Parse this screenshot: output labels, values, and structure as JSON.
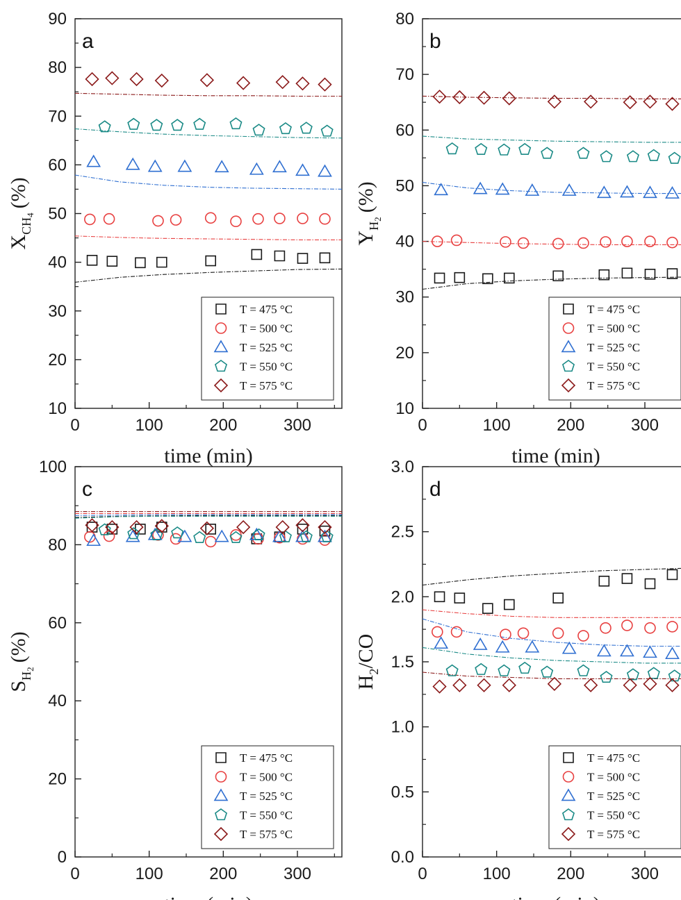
{
  "colors": {
    "T475": "#1a1a1a",
    "T500": "#e84040",
    "T525": "#2f6fd1",
    "T550": "#1a8a86",
    "T575": "#8b1a1a"
  },
  "chart_data": [
    {
      "type": "scatter",
      "panel": "a",
      "xlabel": "time (min)",
      "ylabel": {
        "base": "X",
        "sub": "CH",
        "sub2": "4",
        "unit": "(%)"
      },
      "xlim": [
        0,
        360
      ],
      "ylim": [
        10,
        90
      ],
      "xticks": [
        "0",
        "100",
        "200",
        "300"
      ],
      "yticks": [
        "10",
        "20",
        "30",
        "40",
        "50",
        "60",
        "70",
        "80",
        "90"
      ],
      "legend": {
        "position": "bottom-right"
      },
      "series": [
        {
          "name": "T = 475 °C",
          "marker": "square",
          "color": "T475",
          "x": [
            23,
            50,
            88,
            117,
            183,
            245,
            276,
            307,
            337
          ],
          "y": [
            40.4,
            40.2,
            39.9,
            40.0,
            40.3,
            41.6,
            41.3,
            40.8,
            40.9
          ],
          "fit_x": [
            0,
            60,
            120,
            180,
            240,
            300,
            360
          ],
          "fit_y": [
            35.9,
            36.9,
            37.5,
            37.9,
            38.2,
            38.5,
            38.6
          ]
        },
        {
          "name": "T = 500 °C",
          "marker": "circle",
          "color": "T500",
          "x": [
            20,
            46,
            112,
            136,
            183,
            217,
            247,
            276,
            307,
            337
          ],
          "y": [
            48.8,
            48.9,
            48.5,
            48.7,
            49.1,
            48.4,
            48.9,
            49.0,
            49.0,
            48.9
          ],
          "fit_x": [
            0,
            60,
            120,
            180,
            240,
            300,
            360
          ],
          "fit_y": [
            45.4,
            45.1,
            44.9,
            44.8,
            44.7,
            44.6,
            44.6
          ]
        },
        {
          "name": "T = 525 °C",
          "marker": "triangle",
          "color": "T525",
          "x": [
            25,
            78,
            108,
            148,
            198,
            245,
            276,
            307,
            337
          ],
          "y": [
            60.6,
            60.0,
            59.6,
            59.6,
            59.5,
            59.0,
            59.5,
            58.8,
            58.6
          ],
          "fit_x": [
            0,
            60,
            120,
            180,
            240,
            300,
            360
          ],
          "fit_y": [
            57.9,
            56.5,
            55.8,
            55.4,
            55.2,
            55.1,
            55.0
          ]
        },
        {
          "name": "T = 550 °C",
          "marker": "pentagon",
          "color": "T550",
          "x": [
            40,
            79,
            110,
            138,
            168,
            217,
            248,
            284,
            312,
            340
          ],
          "y": [
            67.8,
            68.3,
            68.1,
            68.1,
            68.3,
            68.4,
            67.1,
            67.4,
            67.5,
            66.9
          ],
          "fit_x": [
            0,
            60,
            120,
            180,
            240,
            300,
            360
          ],
          "fit_y": [
            67.4,
            66.8,
            66.3,
            66.0,
            65.8,
            65.6,
            65.5
          ]
        },
        {
          "name": "T = 575 °C",
          "marker": "diamond",
          "color": "T575",
          "x": [
            23,
            50,
            83,
            117,
            178,
            227,
            280,
            307,
            337
          ],
          "y": [
            77.6,
            77.8,
            77.6,
            77.3,
            77.4,
            76.8,
            77.0,
            76.7,
            76.5
          ],
          "fit_x": [
            0,
            60,
            120,
            180,
            240,
            300,
            360
          ],
          "fit_y": [
            74.7,
            74.5,
            74.3,
            74.2,
            74.2,
            74.1,
            74.1
          ]
        }
      ]
    },
    {
      "type": "scatter",
      "panel": "b",
      "xlabel": "time (min)",
      "ylabel": {
        "base": "Y",
        "sub": "H",
        "sub2": "2",
        "unit": "(%)"
      },
      "xlim": [
        0,
        360
      ],
      "ylim": [
        10,
        80
      ],
      "xticks": [
        "0",
        "100",
        "200",
        "300"
      ],
      "yticks": [
        "10",
        "20",
        "30",
        "40",
        "50",
        "60",
        "70",
        "80"
      ],
      "legend": {
        "position": "bottom-right"
      },
      "series": [
        {
          "name": "T = 475 °C",
          "marker": "square",
          "color": "T475",
          "x": [
            23,
            50,
            88,
            117,
            183,
            245,
            276,
            307,
            337
          ],
          "y": [
            33.4,
            33.5,
            33.3,
            33.4,
            33.8,
            34.0,
            34.3,
            34.1,
            34.2
          ],
          "fit_x": [
            0,
            60,
            120,
            180,
            240,
            300,
            360
          ],
          "fit_y": [
            31.4,
            32.4,
            32.9,
            33.2,
            33.4,
            33.5,
            33.6
          ]
        },
        {
          "name": "T = 500 °C",
          "marker": "circle",
          "color": "T500",
          "x": [
            20,
            46,
            112,
            136,
            183,
            217,
            247,
            276,
            307,
            337
          ],
          "y": [
            40.0,
            40.2,
            39.9,
            39.7,
            39.6,
            39.7,
            39.9,
            40.0,
            40.0,
            39.8
          ],
          "fit_x": [
            0,
            60,
            120,
            180,
            240,
            300,
            360
          ],
          "fit_y": [
            40.0,
            39.8,
            39.6,
            39.5,
            39.4,
            39.4,
            39.4
          ]
        },
        {
          "name": "T = 525 °C",
          "marker": "triangle",
          "color": "T525",
          "x": [
            25,
            78,
            108,
            148,
            198,
            245,
            276,
            307,
            337
          ],
          "y": [
            49.2,
            49.4,
            49.3,
            49.1,
            49.1,
            48.7,
            48.8,
            48.7,
            48.6
          ],
          "fit_x": [
            0,
            60,
            120,
            180,
            240,
            300,
            360
          ],
          "fit_y": [
            50.6,
            49.6,
            49.1,
            48.8,
            48.7,
            48.6,
            48.6
          ]
        },
        {
          "name": "T = 550 °C",
          "marker": "pentagon",
          "color": "T550",
          "x": [
            40,
            79,
            110,
            138,
            168,
            217,
            248,
            284,
            312,
            340
          ],
          "y": [
            56.6,
            56.5,
            56.4,
            56.5,
            55.8,
            55.8,
            55.2,
            55.2,
            55.4,
            54.9
          ],
          "fit_x": [
            0,
            60,
            120,
            180,
            240,
            300,
            360
          ],
          "fit_y": [
            58.9,
            58.4,
            58.2,
            58.0,
            57.9,
            57.8,
            57.8
          ]
        },
        {
          "name": "T = 575 °C",
          "marker": "diamond",
          "color": "T575",
          "x": [
            23,
            50,
            83,
            117,
            178,
            227,
            280,
            307,
            337
          ],
          "y": [
            66.0,
            65.9,
            65.8,
            65.7,
            65.1,
            65.1,
            65.0,
            65.1,
            64.7
          ],
          "fit_x": [
            0,
            60,
            120,
            180,
            240,
            300,
            360
          ],
          "fit_y": [
            66.1,
            65.9,
            65.8,
            65.7,
            65.7,
            65.6,
            65.6
          ]
        }
      ]
    },
    {
      "type": "scatter",
      "panel": "c",
      "xlabel": "time (min)",
      "ylabel": {
        "base": "S",
        "sub": "H",
        "sub2": "2",
        "unit": "(%)"
      },
      "xlim": [
        0,
        360
      ],
      "ylim": [
        0,
        100
      ],
      "xticks": [
        "0",
        "100",
        "200",
        "300"
      ],
      "yticks": [
        "0",
        "20",
        "40",
        "60",
        "80",
        "100"
      ],
      "legend": {
        "position": "bottom-right"
      },
      "series": [
        {
          "name": "T = 475 °C",
          "marker": "square",
          "color": "T475",
          "x": [
            23,
            50,
            88,
            117,
            183,
            245,
            276,
            307,
            337
          ],
          "y": [
            84.5,
            84.0,
            84.0,
            84.5,
            84.0,
            81.5,
            82.0,
            84.0,
            83.5
          ],
          "fit_x": [
            0,
            60,
            120,
            180,
            240,
            300,
            360
          ],
          "fit_y": [
            87.0,
            87.3,
            87.4,
            87.5,
            87.5,
            87.5,
            87.5
          ]
        },
        {
          "name": "T = 500 °C",
          "marker": "circle",
          "color": "T500",
          "x": [
            20,
            46,
            112,
            136,
            183,
            217,
            247,
            276,
            307,
            337
          ],
          "y": [
            82.0,
            82.2,
            82.5,
            81.5,
            80.8,
            82.5,
            81.5,
            81.8,
            81.5,
            81.2
          ],
          "fit_x": [
            0,
            60,
            120,
            180,
            240,
            300,
            360
          ],
          "fit_y": [
            88.0,
            88.0,
            88.0,
            88.0,
            88.0,
            88.0,
            88.0
          ]
        },
        {
          "name": "T = 525 °C",
          "marker": "triangle",
          "color": "T525",
          "x": [
            25,
            78,
            108,
            148,
            198,
            245,
            276,
            307,
            337
          ],
          "y": [
            81.0,
            82.0,
            82.5,
            82.0,
            82.0,
            82.5,
            82.0,
            82.0,
            82.0
          ],
          "fit_x": [
            0,
            60,
            120,
            180,
            240,
            300,
            360
          ],
          "fit_y": [
            87.5,
            87.6,
            87.7,
            87.7,
            87.7,
            87.7,
            87.7
          ]
        },
        {
          "name": "T = 550 °C",
          "marker": "pentagon",
          "color": "T550",
          "x": [
            40,
            79,
            110,
            138,
            168,
            217,
            248,
            284,
            312,
            340
          ],
          "y": [
            83.8,
            82.8,
            82.5,
            83.0,
            81.8,
            81.8,
            82.5,
            82.0,
            82.0,
            82.0
          ],
          "fit_x": [
            0,
            60,
            120,
            180,
            240,
            300,
            360
          ],
          "fit_y": [
            86.8,
            87.2,
            87.3,
            87.3,
            87.3,
            87.3,
            87.3
          ]
        },
        {
          "name": "T = 575 °C",
          "marker": "diamond",
          "color": "T575",
          "x": [
            23,
            50,
            83,
            117,
            178,
            227,
            280,
            307,
            337
          ],
          "y": [
            85.0,
            84.5,
            84.5,
            84.8,
            84.2,
            84.5,
            84.5,
            85.0,
            84.5
          ],
          "fit_x": [
            0,
            60,
            120,
            180,
            240,
            300,
            360
          ],
          "fit_y": [
            88.5,
            88.5,
            88.5,
            88.5,
            88.5,
            88.5,
            88.5
          ]
        }
      ]
    },
    {
      "type": "scatter",
      "panel": "d",
      "xlabel": "time (min)",
      "ylabel": {
        "base": "H",
        "sub": "2",
        "sub2": "",
        "unit": "/CO"
      },
      "xlim": [
        0,
        360
      ],
      "ylim": [
        0,
        3.0
      ],
      "xticks": [
        "0",
        "100",
        "200",
        "300"
      ],
      "yticks": [
        "0.0",
        "0.5",
        "1.0",
        "1.5",
        "2.0",
        "2.5",
        "3.0"
      ],
      "legend": {
        "position": "bottom-right"
      },
      "series": [
        {
          "name": "T = 475 °C",
          "marker": "square",
          "color": "T475",
          "x": [
            23,
            50,
            88,
            117,
            183,
            245,
            276,
            307,
            337
          ],
          "y": [
            2.0,
            1.99,
            1.91,
            1.94,
            1.99,
            2.12,
            2.14,
            2.1,
            2.17
          ],
          "fit_x": [
            0,
            60,
            120,
            180,
            240,
            300,
            360
          ],
          "fit_y": [
            2.09,
            2.13,
            2.16,
            2.18,
            2.2,
            2.21,
            2.22
          ]
        },
        {
          "name": "T = 500 °C",
          "marker": "circle",
          "color": "T500",
          "x": [
            20,
            46,
            112,
            136,
            183,
            217,
            247,
            276,
            307,
            337
          ],
          "y": [
            1.73,
            1.73,
            1.71,
            1.72,
            1.72,
            1.7,
            1.76,
            1.78,
            1.76,
            1.77
          ],
          "fit_x": [
            0,
            60,
            120,
            180,
            240,
            300,
            360
          ],
          "fit_y": [
            1.9,
            1.87,
            1.85,
            1.84,
            1.84,
            1.84,
            1.84
          ]
        },
        {
          "name": "T = 525 °C",
          "marker": "triangle",
          "color": "T525",
          "x": [
            25,
            78,
            108,
            148,
            198,
            245,
            276,
            307,
            337
          ],
          "y": [
            1.64,
            1.63,
            1.61,
            1.61,
            1.6,
            1.58,
            1.58,
            1.57,
            1.56
          ],
          "fit_x": [
            0,
            60,
            120,
            180,
            240,
            300,
            360
          ],
          "fit_y": [
            1.83,
            1.73,
            1.68,
            1.65,
            1.63,
            1.62,
            1.62
          ]
        },
        {
          "name": "T = 550 °C",
          "marker": "pentagon",
          "color": "T550",
          "x": [
            40,
            79,
            110,
            138,
            168,
            217,
            248,
            284,
            312,
            340
          ],
          "y": [
            1.43,
            1.44,
            1.43,
            1.45,
            1.42,
            1.43,
            1.38,
            1.4,
            1.41,
            1.39
          ],
          "fit_x": [
            0,
            60,
            120,
            180,
            240,
            300,
            360
          ],
          "fit_y": [
            1.61,
            1.56,
            1.53,
            1.51,
            1.5,
            1.49,
            1.49
          ]
        },
        {
          "name": "T = 575 °C",
          "marker": "diamond",
          "color": "T575",
          "x": [
            23,
            50,
            83,
            117,
            178,
            227,
            280,
            307,
            337
          ],
          "y": [
            1.31,
            1.32,
            1.32,
            1.32,
            1.33,
            1.32,
            1.32,
            1.33,
            1.32
          ],
          "fit_x": [
            0,
            60,
            120,
            180,
            240,
            300,
            360
          ],
          "fit_y": [
            1.42,
            1.39,
            1.38,
            1.37,
            1.37,
            1.37,
            1.37
          ]
        }
      ]
    }
  ]
}
